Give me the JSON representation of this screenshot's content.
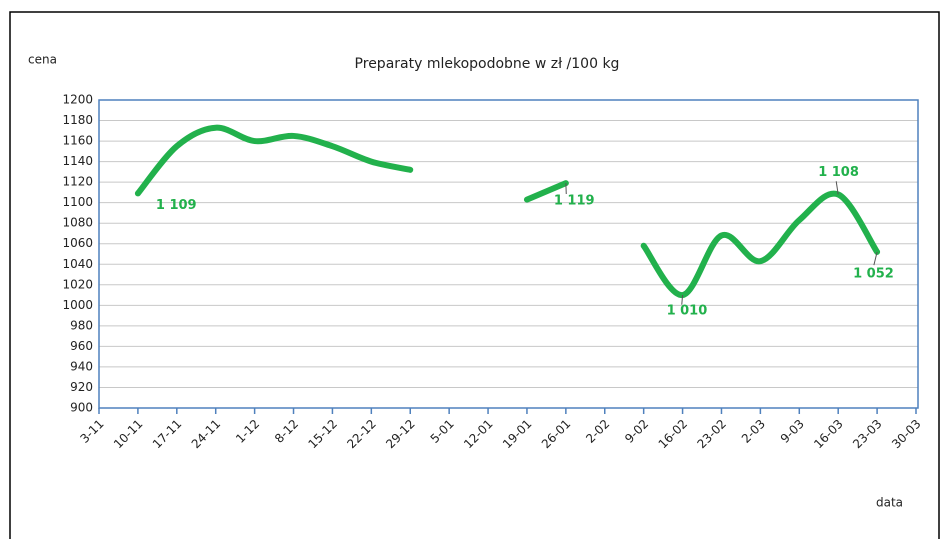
{
  "chart_data": {
    "type": "line",
    "title": "Preparaty mlekopodobne w zł /100 kg",
    "y_label": "cena",
    "x_label": "data",
    "categories": [
      "3-11",
      "10-11",
      "17-11",
      "24-11",
      "1-12",
      "8-12",
      "15-12",
      "22-12",
      "29-12",
      "5-01",
      "12-01",
      "19-01",
      "26-01",
      "2-02",
      "9-02",
      "16-02",
      "23-02",
      "2-03",
      "9-03",
      "16-03",
      "23-03",
      "30-03"
    ],
    "series": [
      {
        "name": "Preparaty mlekopodobne",
        "color": "#22b14c",
        "values": [
          null,
          1109,
          1155,
          1173,
          1160,
          1165,
          1155,
          1140,
          1132,
          null,
          null,
          1103,
          1119,
          null,
          1058,
          1010,
          1068,
          1043,
          1083,
          1108,
          1052,
          null
        ],
        "value_labels": [
          null,
          "1 109",
          null,
          null,
          null,
          null,
          null,
          null,
          null,
          null,
          null,
          null,
          "1 119",
          null,
          null,
          "1 010",
          null,
          null,
          null,
          "1 108",
          "1 052",
          null
        ]
      }
    ],
    "ylim": [
      900,
      1200
    ],
    "yticks": [
      900,
      920,
      940,
      960,
      980,
      1000,
      1020,
      1040,
      1060,
      1080,
      1100,
      1120,
      1140,
      1160,
      1180,
      1200
    ],
    "grid": true
  }
}
